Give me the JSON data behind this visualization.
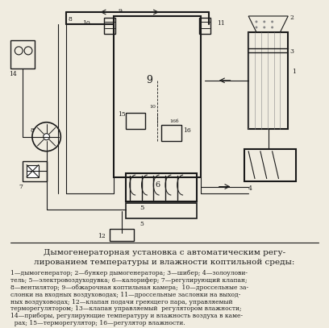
{
  "title_line1": "Дымогенераторная установка с автоматическим регу-",
  "title_line2": "лированием температуры и влажности коптильной среды:",
  "caption": "1—дымогенератор; 2—бункер дымогенератора; 3—шибер; 4—золоуловитель; 5—электровоздуходувка; 6—калорифер; 7—регулирующий клапан; 8—вентилятор; 9—обжарочная коптильная камера; 10—дроссельные заслонки на входных воздуховодах; 11—дроссельные заслонки на выходных воздуховодах; 12—клапан подачи греющего пара, управляемый терморегулятором; 13—клапан управляемый регулятором влажности; 14—приборы, регулирующие температуру и влажность воздуха в камерах; 15—терморегулятор; 16—регулятор влажности.",
  "bg_color": "#f0ece0",
  "line_color": "#1a1a1a",
  "text_color": "#1a1a1a"
}
